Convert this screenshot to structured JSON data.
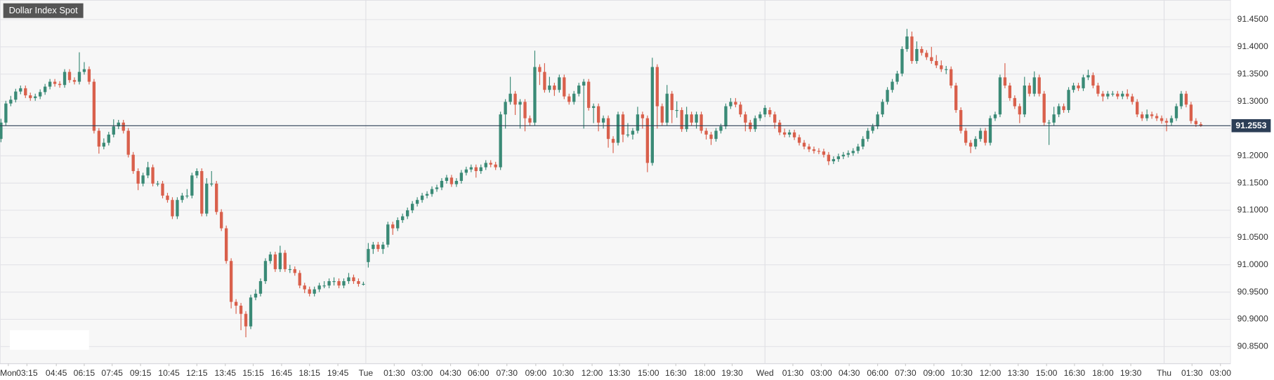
{
  "chart_data": {
    "type": "candlestick",
    "title": "Dollar Index Spot",
    "up_color": "#3a8a76",
    "down_color": "#d9604c",
    "grid": true,
    "last_price": 91.2553,
    "last_color": "#2c3e56",
    "ylim": [
      90.8186,
      91.4859
    ],
    "yticks": [
      {
        "value": 90.85,
        "label": "90.8500"
      },
      {
        "value": 90.9,
        "label": "90.9000"
      },
      {
        "value": 90.95,
        "label": "90.9500"
      },
      {
        "value": 91.0,
        "label": "91.0000"
      },
      {
        "value": 91.05,
        "label": "91.0500"
      },
      {
        "value": 91.1,
        "label": "91.1000"
      },
      {
        "value": 91.15,
        "label": "91.1500"
      },
      {
        "value": 91.2,
        "label": "91.2000"
      },
      {
        "value": 91.25,
        "label": "91.2500"
      },
      {
        "value": 91.3,
        "label": "91.3000"
      },
      {
        "value": 91.35,
        "label": "91.3500"
      },
      {
        "value": 91.4,
        "label": "91.4000"
      },
      {
        "value": 91.45,
        "label": "91.4500"
      }
    ],
    "xlim": [
      -0.2,
      251.1
    ],
    "xticks": [
      {
        "value": 1.5,
        "label": "Mon"
      },
      {
        "value": 5.3,
        "label": "03:15"
      },
      {
        "value": 11.3,
        "label": "04:45"
      },
      {
        "value": 17,
        "label": "06:15"
      },
      {
        "value": 22.7,
        "label": "07:45"
      },
      {
        "value": 28.5,
        "label": "09:15"
      },
      {
        "value": 34.3,
        "label": "10:45"
      },
      {
        "value": 40,
        "label": "12:15"
      },
      {
        "value": 45.8,
        "label": "13:45"
      },
      {
        "value": 51.5,
        "label": "15:15"
      },
      {
        "value": 57.3,
        "label": "16:45"
      },
      {
        "value": 63,
        "label": "18:15"
      },
      {
        "value": 68.8,
        "label": "19:45"
      },
      {
        "value": 74.5,
        "label": "Tue"
      },
      {
        "value": 80.3,
        "label": "01:30"
      },
      {
        "value": 86,
        "label": "03:00"
      },
      {
        "value": 91.8,
        "label": "04:30"
      },
      {
        "value": 97.5,
        "label": "06:00"
      },
      {
        "value": 103.3,
        "label": "07:30"
      },
      {
        "value": 109.2,
        "label": "09:00"
      },
      {
        "value": 114.8,
        "label": "10:30"
      },
      {
        "value": 120.7,
        "label": "12:00"
      },
      {
        "value": 126.3,
        "label": "13:30"
      },
      {
        "value": 132.2,
        "label": "15:00"
      },
      {
        "value": 137.8,
        "label": "16:30"
      },
      {
        "value": 143.7,
        "label": "18:00"
      },
      {
        "value": 149.3,
        "label": "19:30"
      },
      {
        "value": 156,
        "label": "Wed"
      },
      {
        "value": 161.7,
        "label": "01:30"
      },
      {
        "value": 167.5,
        "label": "03:00"
      },
      {
        "value": 173.2,
        "label": "04:30"
      },
      {
        "value": 179,
        "label": "06:00"
      },
      {
        "value": 184.7,
        "label": "07:30"
      },
      {
        "value": 190.5,
        "label": "09:00"
      },
      {
        "value": 196.2,
        "label": "10:30"
      },
      {
        "value": 202,
        "label": "12:00"
      },
      {
        "value": 207.7,
        "label": "13:30"
      },
      {
        "value": 213.5,
        "label": "15:00"
      },
      {
        "value": 219.2,
        "label": "16:30"
      },
      {
        "value": 225,
        "label": "18:00"
      },
      {
        "value": 230.7,
        "label": "19:30"
      },
      {
        "value": 237.5,
        "label": "Thu"
      },
      {
        "value": 243.2,
        "label": "01:30"
      },
      {
        "value": 249,
        "label": "03:00"
      }
    ],
    "open": [
      91.231,
      91.261,
      91.296,
      91.303,
      91.318,
      91.324,
      91.311,
      91.306,
      91.309,
      91.317,
      91.327,
      91.336,
      91.332,
      91.33,
      91.354,
      91.339,
      91.336,
      91.354,
      91.359,
      91.336,
      91.246,
      91.217,
      91.224,
      91.239,
      91.254,
      91.261,
      91.246,
      91.202,
      91.172,
      91.149,
      91.164,
      91.179,
      91.149,
      91.149,
      91.127,
      91.119,
      91.089,
      91.119,
      91.127,
      91.127,
      91.164,
      91.172,
      91.094,
      91.149,
      91.149,
      91.097,
      91.067,
      91.007,
      90.932,
      90.925,
      90.91,
      90.887,
      90.94,
      90.947,
      90.97,
      91.007,
      91.019,
      90.992,
      91.022,
      90.992,
      90.992,
      90.985,
      90.962,
      90.955,
      90.947,
      90.955,
      90.962,
      90.962,
      90.97,
      90.97,
      90.962,
      90.97,
      90.977,
      90.97,
      90.965,
      91.005,
      91.029,
      91.037,
      91.029,
      91.037,
      91.074,
      91.067,
      91.082,
      91.089,
      91.1,
      91.112,
      91.119,
      91.127,
      91.13,
      91.139,
      91.142,
      91.154,
      91.16,
      91.148,
      91.154,
      91.169,
      91.175,
      91.179,
      91.172,
      91.179,
      91.187,
      91.184,
      91.179,
      91.276,
      91.299,
      91.314,
      91.294,
      91.299,
      91.269,
      91.261,
      91.363,
      91.354,
      91.321,
      91.329,
      91.321,
      91.344,
      91.309,
      91.299,
      91.314,
      91.329,
      91.336,
      91.288,
      91.291,
      91.261,
      91.269,
      91.231,
      91.224,
      91.276,
      91.239,
      91.239,
      91.246,
      91.276,
      91.269,
      91.187,
      91.363,
      91.291,
      91.261,
      91.314,
      91.284,
      91.284,
      91.249,
      91.276,
      91.261,
      91.276,
      91.246,
      91.239,
      91.231,
      91.246,
      91.254,
      91.291,
      91.299,
      91.294,
      91.276,
      91.261,
      91.249,
      91.269,
      91.276,
      91.284,
      91.276,
      91.261,
      91.243,
      91.239,
      91.243,
      91.234,
      91.224,
      91.217,
      91.212,
      91.209,
      91.208,
      91.202,
      91.19,
      91.194,
      91.199,
      91.202,
      91.205,
      91.209,
      91.217,
      91.231,
      91.246,
      91.254,
      91.276,
      91.299,
      91.321,
      91.336,
      91.351,
      91.396,
      91.419,
      91.374,
      91.396,
      91.389,
      91.381,
      91.374,
      91.366,
      91.359,
      91.359,
      91.329,
      91.284,
      91.246,
      91.224,
      91.217,
      91.231,
      91.246,
      91.224,
      91.269,
      91.276,
      91.344,
      91.329,
      91.306,
      91.291,
      91.276,
      91.329,
      91.314,
      91.344,
      91.314,
      91.261,
      91.261,
      91.276,
      91.291,
      91.284,
      91.321,
      91.329,
      91.324,
      91.344,
      91.348,
      91.329,
      91.314,
      91.309,
      91.314,
      91.314,
      91.309,
      91.314,
      91.309,
      91.299,
      91.276,
      91.269,
      91.276,
      91.273,
      91.269,
      91.264,
      91.261,
      91.269,
      91.291,
      91.314,
      91.294,
      91.264,
      91.258
    ],
    "high": [
      91.268,
      91.301,
      91.31,
      91.323,
      91.329,
      91.329,
      91.316,
      91.314,
      91.322,
      91.332,
      91.341,
      91.341,
      91.337,
      91.359,
      91.359,
      91.344,
      91.39,
      91.372,
      91.364,
      91.341,
      91.251,
      91.232,
      91.244,
      91.267,
      91.266,
      91.266,
      91.251,
      91.207,
      91.177,
      91.169,
      91.189,
      91.184,
      91.154,
      91.154,
      91.132,
      91.124,
      91.124,
      91.132,
      91.139,
      91.169,
      91.177,
      91.177,
      91.159,
      91.172,
      91.154,
      91.102,
      91.072,
      91.012,
      90.937,
      90.93,
      90.915,
      90.945,
      90.955,
      90.975,
      91.012,
      91.024,
      91.024,
      91.035,
      91.027,
      91.0,
      90.997,
      90.99,
      90.967,
      90.96,
      90.96,
      90.967,
      90.97,
      90.975,
      90.977,
      90.975,
      90.975,
      90.985,
      90.982,
      90.975,
      90.969,
      91.04,
      91.042,
      91.042,
      91.042,
      91.079,
      91.079,
      91.087,
      91.094,
      91.105,
      91.117,
      91.124,
      91.132,
      91.135,
      91.144,
      91.147,
      91.159,
      91.165,
      91.165,
      91.159,
      91.174,
      91.18,
      91.184,
      91.184,
      91.184,
      91.192,
      91.192,
      91.189,
      91.281,
      91.304,
      91.345,
      91.319,
      91.304,
      91.304,
      91.274,
      91.393,
      91.368,
      91.37,
      91.345,
      91.334,
      91.349,
      91.349,
      91.314,
      91.319,
      91.334,
      91.341,
      91.341,
      91.296,
      91.296,
      91.274,
      91.274,
      91.236,
      91.281,
      91.281,
      91.26,
      91.251,
      91.29,
      91.281,
      91.274,
      91.38,
      91.368,
      91.296,
      91.33,
      91.319,
      91.3,
      91.289,
      91.29,
      91.281,
      91.281,
      91.281,
      91.251,
      91.244,
      91.251,
      91.259,
      91.296,
      91.306,
      91.306,
      91.299,
      91.281,
      91.266,
      91.274,
      91.281,
      91.293,
      91.289,
      91.281,
      91.266,
      91.25,
      91.248,
      91.248,
      91.239,
      91.229,
      91.222,
      91.217,
      91.214,
      91.213,
      91.207,
      91.199,
      91.204,
      91.207,
      91.21,
      91.214,
      91.222,
      91.236,
      91.251,
      91.259,
      91.281,
      91.304,
      91.326,
      91.341,
      91.356,
      91.401,
      91.433,
      91.428,
      91.41,
      91.401,
      91.394,
      91.4,
      91.385,
      91.375,
      91.365,
      91.364,
      91.334,
      91.289,
      91.251,
      91.229,
      91.236,
      91.251,
      91.251,
      91.274,
      91.281,
      91.349,
      91.37,
      91.334,
      91.311,
      91.296,
      91.345,
      91.334,
      91.355,
      91.349,
      91.319,
      91.266,
      91.29,
      91.296,
      91.296,
      91.326,
      91.334,
      91.334,
      91.349,
      91.358,
      91.353,
      91.334,
      91.319,
      91.319,
      91.319,
      91.319,
      91.319,
      91.322,
      91.314,
      91.304,
      91.281,
      91.285,
      91.281,
      91.278,
      91.274,
      91.269,
      91.274,
      91.296,
      91.319,
      91.319,
      91.299,
      91.269,
      91.262
    ],
    "low": [
      91.225,
      91.256,
      91.291,
      91.298,
      91.313,
      91.306,
      91.301,
      91.301,
      91.304,
      91.312,
      91.322,
      91.327,
      91.325,
      91.325,
      91.334,
      91.331,
      91.331,
      91.349,
      91.331,
      91.241,
      91.204,
      91.212,
      91.219,
      91.234,
      91.249,
      91.241,
      91.197,
      91.167,
      91.137,
      91.144,
      91.159,
      91.144,
      91.144,
      91.122,
      91.114,
      91.084,
      91.084,
      91.114,
      91.122,
      91.122,
      91.159,
      91.089,
      91.089,
      91.144,
      91.092,
      91.062,
      91.002,
      90.92,
      90.91,
      90.88,
      90.867,
      90.882,
      90.935,
      90.942,
      90.965,
      91.002,
      90.987,
      90.987,
      90.987,
      90.985,
      90.98,
      90.957,
      90.948,
      90.942,
      90.942,
      90.95,
      90.957,
      90.957,
      90.962,
      90.957,
      90.957,
      90.965,
      90.965,
      90.96,
      90.962,
      90.995,
      91.02,
      91.024,
      91.02,
      91.032,
      91.055,
      91.062,
      91.077,
      91.084,
      91.095,
      91.107,
      91.114,
      91.122,
      91.125,
      91.134,
      91.137,
      91.149,
      91.143,
      91.143,
      91.149,
      91.164,
      91.17,
      91.16,
      91.167,
      91.174,
      91.179,
      91.174,
      91.174,
      91.25,
      91.294,
      91.275,
      91.25,
      91.245,
      91.256,
      91.256,
      91.33,
      91.316,
      91.316,
      91.31,
      91.316,
      91.304,
      91.294,
      91.294,
      91.309,
      91.25,
      91.283,
      91.26,
      91.245,
      91.25,
      91.215,
      91.205,
      91.219,
      91.225,
      91.234,
      91.23,
      91.241,
      91.25,
      91.17,
      91.182,
      91.25,
      91.256,
      91.256,
      91.26,
      91.27,
      91.244,
      91.244,
      91.256,
      91.25,
      91.241,
      91.23,
      91.22,
      91.226,
      91.241,
      91.249,
      91.286,
      91.289,
      91.271,
      91.245,
      91.244,
      91.244,
      91.264,
      91.271,
      91.271,
      91.25,
      91.238,
      91.234,
      91.234,
      91.229,
      91.219,
      91.212,
      91.207,
      91.204,
      91.203,
      91.197,
      91.183,
      91.185,
      91.189,
      91.194,
      91.197,
      91.2,
      91.204,
      91.212,
      91.226,
      91.241,
      91.249,
      91.271,
      91.294,
      91.316,
      91.331,
      91.346,
      91.391,
      91.369,
      91.369,
      91.384,
      91.376,
      91.369,
      91.361,
      91.354,
      91.35,
      91.324,
      91.279,
      91.241,
      91.219,
      91.205,
      91.212,
      91.226,
      91.219,
      91.219,
      91.264,
      91.271,
      91.324,
      91.301,
      91.286,
      91.26,
      91.271,
      91.309,
      91.309,
      91.309,
      91.256,
      91.22,
      91.256,
      91.271,
      91.279,
      91.279,
      91.316,
      91.319,
      91.319,
      91.339,
      91.324,
      91.309,
      91.3,
      91.304,
      91.309,
      91.304,
      91.304,
      91.304,
      91.294,
      91.271,
      91.264,
      91.264,
      91.268,
      91.264,
      91.259,
      91.245,
      91.256,
      91.264,
      91.286,
      91.289,
      91.259,
      91.253,
      91.253
    ],
    "close": [
      91.261,
      91.296,
      91.303,
      91.318,
      91.324,
      91.311,
      91.306,
      91.309,
      91.317,
      91.327,
      91.336,
      91.332,
      91.33,
      91.354,
      91.339,
      91.336,
      91.354,
      91.359,
      91.336,
      91.246,
      91.217,
      91.224,
      91.239,
      91.254,
      91.261,
      91.246,
      91.202,
      91.172,
      91.149,
      91.164,
      91.179,
      91.149,
      91.149,
      91.127,
      91.119,
      91.089,
      91.119,
      91.127,
      91.127,
      91.164,
      91.172,
      91.094,
      91.149,
      91.149,
      91.097,
      91.067,
      91.007,
      90.932,
      90.925,
      90.91,
      90.887,
      90.94,
      90.947,
      90.97,
      91.007,
      91.019,
      90.992,
      91.022,
      90.992,
      90.992,
      90.985,
      90.962,
      90.955,
      90.947,
      90.955,
      90.962,
      90.962,
      90.97,
      90.97,
      90.962,
      90.97,
      90.977,
      90.97,
      90.965,
      90.965,
      91.029,
      91.037,
      91.029,
      91.037,
      91.074,
      91.067,
      91.082,
      91.089,
      91.1,
      91.112,
      91.119,
      91.127,
      91.13,
      91.139,
      91.142,
      91.154,
      91.16,
      91.148,
      91.154,
      91.169,
      91.175,
      91.179,
      91.172,
      91.179,
      91.187,
      91.184,
      91.179,
      91.276,
      91.299,
      91.314,
      91.294,
      91.299,
      91.269,
      91.261,
      91.363,
      91.354,
      91.321,
      91.329,
      91.321,
      91.344,
      91.309,
      91.299,
      91.314,
      91.329,
      91.336,
      91.288,
      91.291,
      91.261,
      91.269,
      91.231,
      91.224,
      91.276,
      91.239,
      91.239,
      91.246,
      91.276,
      91.269,
      91.187,
      91.363,
      91.291,
      91.261,
      91.314,
      91.284,
      91.284,
      91.249,
      91.276,
      91.261,
      91.276,
      91.246,
      91.239,
      91.231,
      91.246,
      91.254,
      91.291,
      91.299,
      91.294,
      91.276,
      91.261,
      91.249,
      91.269,
      91.276,
      91.288,
      91.276,
      91.261,
      91.243,
      91.239,
      91.243,
      91.234,
      91.224,
      91.217,
      91.212,
      91.209,
      91.208,
      91.202,
      91.19,
      91.194,
      91.199,
      91.202,
      91.205,
      91.209,
      91.217,
      91.231,
      91.246,
      91.254,
      91.276,
      91.299,
      91.321,
      91.336,
      91.351,
      91.396,
      91.419,
      91.374,
      91.396,
      91.389,
      91.381,
      91.374,
      91.366,
      91.359,
      91.359,
      91.329,
      91.284,
      91.246,
      91.224,
      91.217,
      91.231,
      91.246,
      91.224,
      91.269,
      91.276,
      91.344,
      91.329,
      91.306,
      91.291,
      91.276,
      91.329,
      91.314,
      91.344,
      91.314,
      91.261,
      91.261,
      91.276,
      91.291,
      91.284,
      91.321,
      91.329,
      91.324,
      91.344,
      91.348,
      91.329,
      91.314,
      91.309,
      91.314,
      91.314,
      91.309,
      91.314,
      91.309,
      91.299,
      91.276,
      91.269,
      91.276,
      91.273,
      91.269,
      91.264,
      91.261,
      91.269,
      91.291,
      91.314,
      91.294,
      91.264,
      91.258,
      91.2553
    ]
  }
}
